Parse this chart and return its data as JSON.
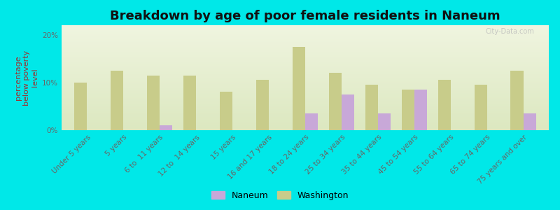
{
  "title": "Breakdown by age of poor female residents in Naneum",
  "ylabel": "percentage\nbelow poverty\nlevel",
  "categories": [
    "Under 5 years",
    "5 years",
    "6 to  11 years",
    "12 to  14 years",
    "15 years",
    "16 and 17 years",
    "18 to 24 years",
    "25 to 34 years",
    "35 to 44 years",
    "45 to 54 years",
    "55 to 64 years",
    "65 to 74 years",
    "75 years and over"
  ],
  "naneum_values": [
    0,
    0,
    1.0,
    0,
    0,
    0,
    3.5,
    7.5,
    3.5,
    8.5,
    0,
    0,
    3.5
  ],
  "washington_values": [
    10.0,
    12.5,
    11.5,
    11.5,
    8.0,
    10.5,
    17.5,
    12.0,
    9.5,
    8.5,
    10.5,
    9.5,
    12.5
  ],
  "naneum_color": "#c8a8d8",
  "washington_color": "#c8cc8a",
  "background_color": "#00e8e8",
  "plot_bg_top": "#dce8c0",
  "plot_bg_bottom": "#f0f5e0",
  "ylim": [
    0,
    22
  ],
  "yticks": [
    0,
    10,
    20
  ],
  "ytick_labels": [
    "0%",
    "10%",
    "20%"
  ],
  "bar_width": 0.35,
  "title_fontsize": 13,
  "axis_label_fontsize": 8,
  "tick_fontsize": 7.5,
  "legend_fontsize": 9,
  "watermark": "City-Data.com"
}
